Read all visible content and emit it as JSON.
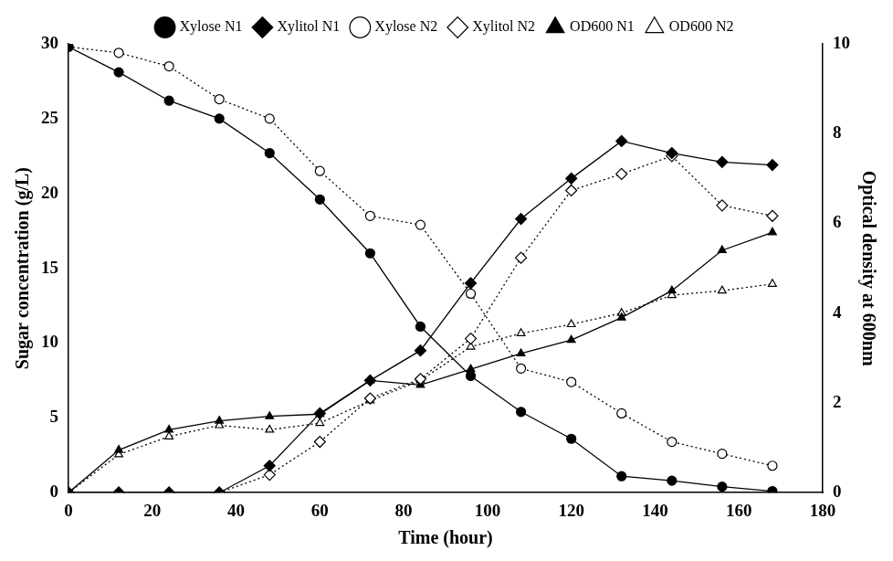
{
  "chart_data": {
    "type": "line",
    "x_label": "Time (hour)",
    "y_label": "Sugar concentration (g/L)",
    "y2_label": "Optical density at 600nm",
    "x": [
      0,
      12,
      24,
      36,
      48,
      60,
      72,
      84,
      96,
      108,
      120,
      132,
      144,
      156,
      168
    ],
    "xlim": [
      0,
      180
    ],
    "xticks": [
      0,
      20,
      40,
      60,
      80,
      100,
      120,
      140,
      160,
      180
    ],
    "ylim": [
      0,
      30
    ],
    "yticks": [
      0,
      5,
      10,
      15,
      20,
      25,
      30
    ],
    "y2lim": [
      0,
      10
    ],
    "y2ticks": [
      0,
      2,
      4,
      6,
      8,
      10
    ],
    "grid": false,
    "legend": "top",
    "series": [
      {
        "name": "Xylose N1",
        "color": "#000000",
        "marker": "circle",
        "line_style": "solid",
        "axis": "y",
        "values": [
          29.8,
          28.1,
          26.2,
          25.0,
          22.7,
          19.6,
          16.0,
          11.1,
          7.8,
          5.4,
          3.6,
          1.1,
          0.8,
          0.4,
          0.1
        ]
      },
      {
        "name": "Xylitol N1",
        "color": "#000000",
        "marker": "diamond",
        "line_style": "solid",
        "axis": "y",
        "values": [
          0,
          0,
          0,
          0,
          1.8,
          5.3,
          7.5,
          9.5,
          14.0,
          18.3,
          21.0,
          23.5,
          22.7,
          22.1,
          21.9
        ]
      },
      {
        "name": "Xylose N2",
        "color": "#000000",
        "marker": "open-circle",
        "line_style": "dotted",
        "axis": "y",
        "values": [
          29.8,
          29.4,
          28.5,
          26.3,
          25.0,
          21.5,
          18.5,
          17.9,
          13.3,
          8.3,
          7.4,
          5.3,
          3.4,
          2.6,
          1.8
        ]
      },
      {
        "name": "Xylitol N2",
        "color": "#000000",
        "marker": "open-diamond",
        "line_style": "dotted",
        "axis": "y",
        "values": [
          0,
          0,
          0,
          0,
          1.2,
          3.4,
          6.3,
          7.6,
          10.3,
          15.7,
          20.2,
          21.3,
          22.5,
          19.2,
          18.5
        ]
      },
      {
        "name": "OD600 N1",
        "color": "#000000",
        "marker": "triangle",
        "line_style": "solid",
        "axis": "y2",
        "values": [
          0,
          0.95,
          1.4,
          1.6,
          1.7,
          1.75,
          2.5,
          2.4,
          2.75,
          3.1,
          3.4,
          3.9,
          4.5,
          5.4,
          5.8
        ]
      },
      {
        "name": "OD600 N2",
        "color": "#000000",
        "marker": "open-triangle",
        "line_style": "dotted",
        "axis": "y2",
        "values": [
          0,
          0.85,
          1.25,
          1.5,
          1.4,
          1.55,
          2.05,
          2.5,
          3.25,
          3.55,
          3.75,
          4.0,
          4.4,
          4.5,
          4.65
        ]
      }
    ]
  }
}
